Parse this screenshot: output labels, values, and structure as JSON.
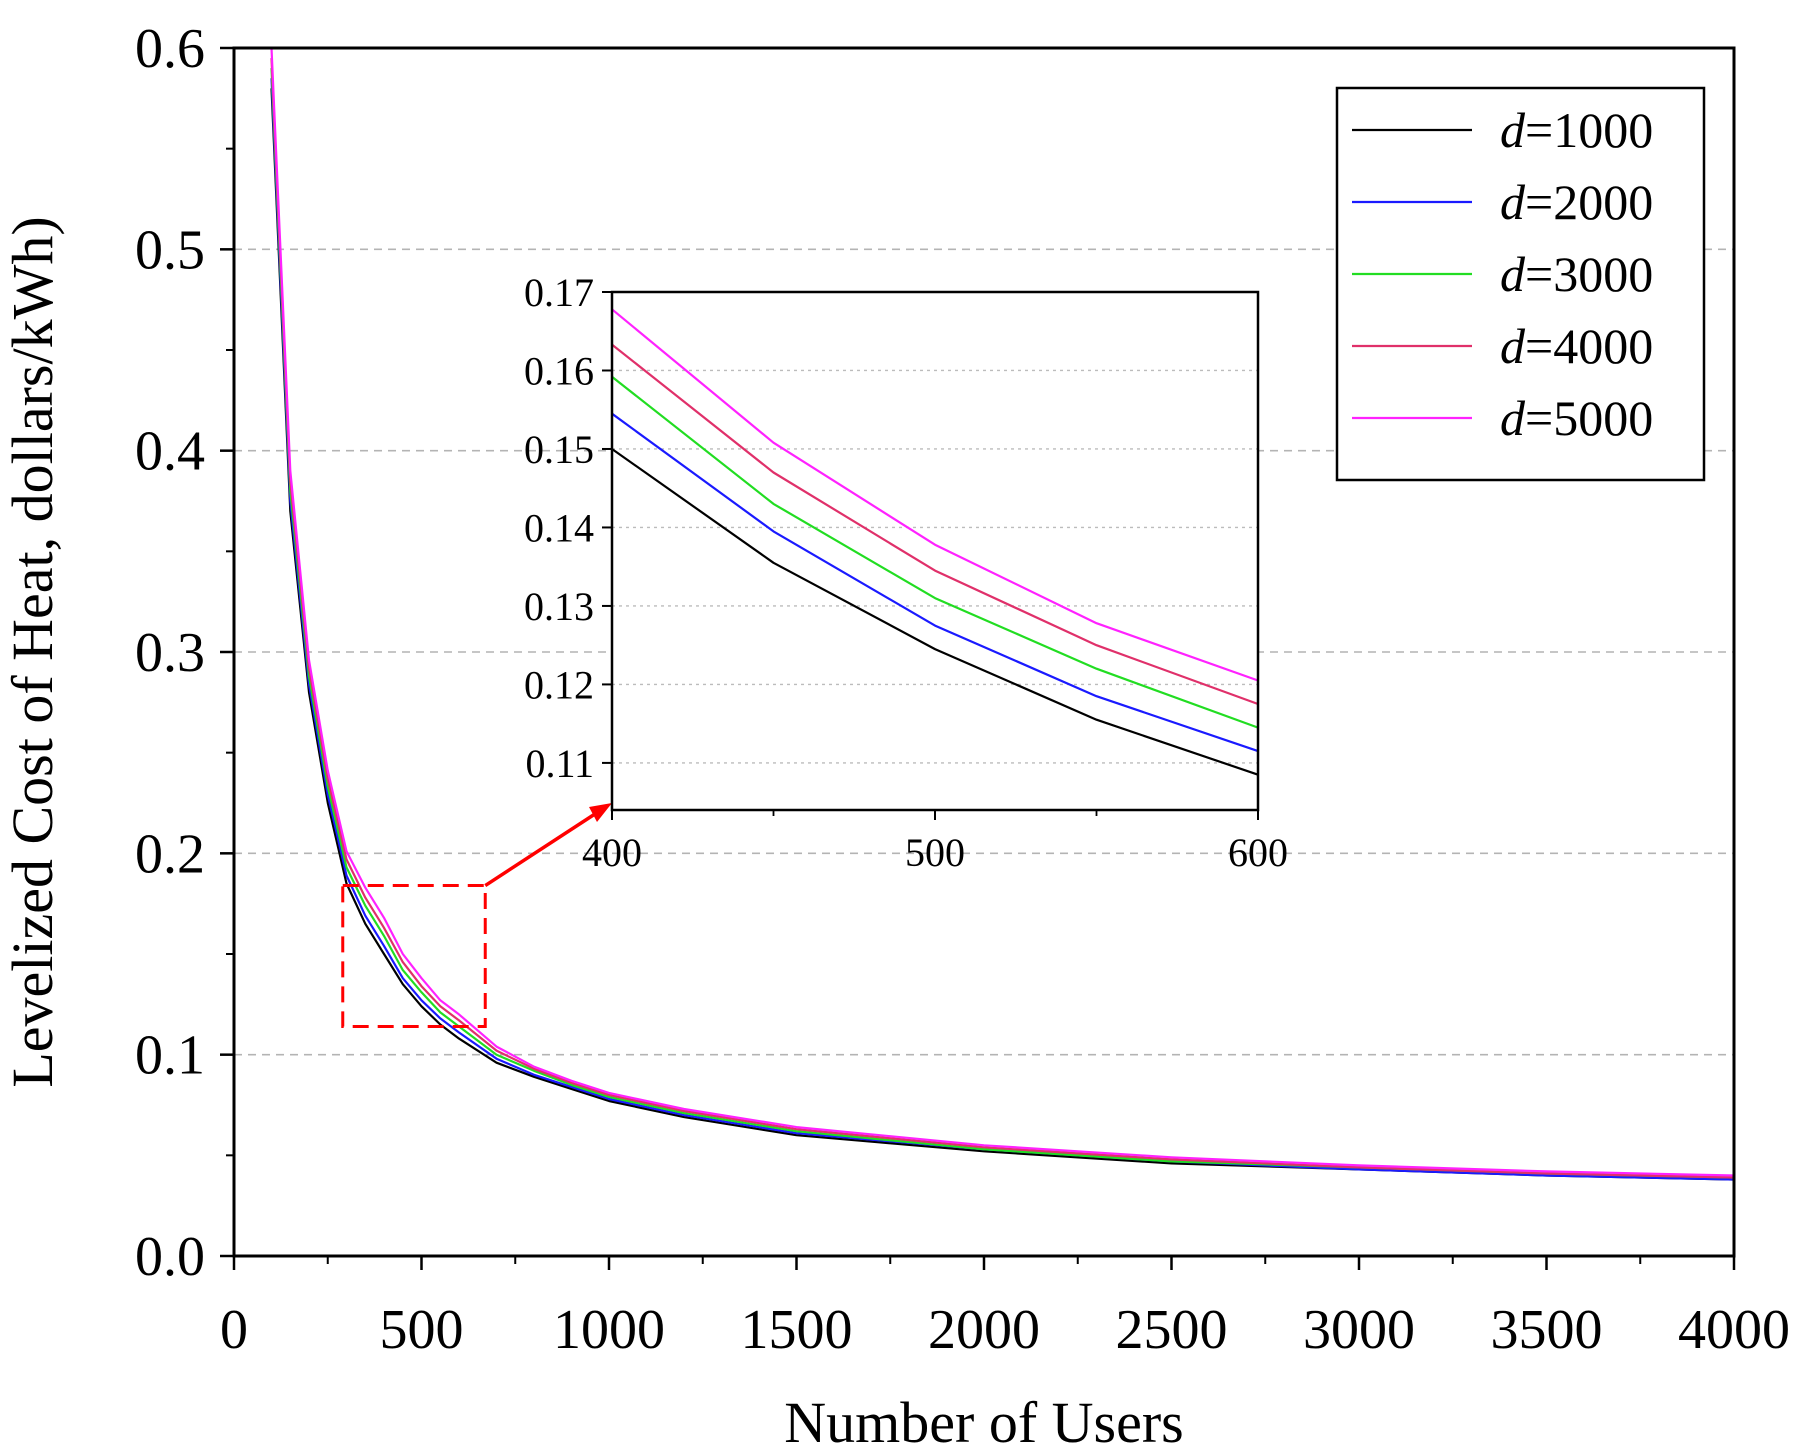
{
  "chart_data": [
    {
      "id": "main",
      "type": "line",
      "title": "",
      "xlabel": "Number of Users",
      "ylabel": "Levelized Cost of Heat, dollars/kWh)",
      "xlim": [
        0,
        4000
      ],
      "ylim": [
        0.0,
        0.6
      ],
      "xticks": [
        "0",
        "500",
        "1000",
        "1500",
        "2000",
        "2500",
        "3000",
        "3500",
        "4000"
      ],
      "xtick_values": [
        0,
        500,
        1000,
        1500,
        2000,
        2500,
        3000,
        3500,
        4000
      ],
      "yticks": [
        "0.0",
        "0.1",
        "0.2",
        "0.3",
        "0.4",
        "0.5",
        "0.6"
      ],
      "ytick_values": [
        0.0,
        0.1,
        0.2,
        0.3,
        0.4,
        0.5,
        0.6
      ],
      "grid": "horizontal dashed",
      "legend": {
        "placement": "top-right",
        "entries": [
          {
            "var": "d",
            "label": "=1000"
          },
          {
            "var": "d",
            "label": "=2000"
          },
          {
            "var": "d",
            "label": "=3000"
          },
          {
            "var": "d",
            "label": "=4000"
          },
          {
            "var": "d",
            "label": "=5000"
          }
        ]
      },
      "x": [
        100,
        150,
        200,
        250,
        300,
        350,
        400,
        450,
        500,
        550,
        600,
        700,
        800,
        900,
        1000,
        1200,
        1500,
        2000,
        2500,
        3000,
        3500,
        4000
      ],
      "series": [
        {
          "name": "d=1000",
          "color": "#000000",
          "values": [
            0.58,
            0.37,
            0.28,
            0.225,
            0.185,
            0.165,
            0.15,
            0.135,
            0.124,
            0.115,
            0.108,
            0.096,
            0.089,
            0.083,
            0.077,
            0.069,
            0.06,
            0.052,
            0.046,
            0.043,
            0.04,
            0.038
          ]
        },
        {
          "name": "d=2000",
          "color": "#1a1aff",
          "values": [
            0.585,
            0.375,
            0.284,
            0.229,
            0.189,
            0.169,
            0.154,
            0.138,
            0.127,
            0.118,
            0.111,
            0.098,
            0.09,
            0.084,
            0.078,
            0.07,
            0.061,
            0.053,
            0.047,
            0.043,
            0.04,
            0.038
          ]
        },
        {
          "name": "d=3000",
          "color": "#22dd22",
          "values": [
            0.59,
            0.38,
            0.288,
            0.233,
            0.193,
            0.174,
            0.159,
            0.142,
            0.131,
            0.121,
            0.114,
            0.1,
            0.092,
            0.085,
            0.079,
            0.071,
            0.062,
            0.053,
            0.047,
            0.044,
            0.041,
            0.039
          ]
        },
        {
          "name": "d=4000",
          "color": "#e0306a",
          "values": [
            0.595,
            0.385,
            0.292,
            0.237,
            0.197,
            0.178,
            0.163,
            0.146,
            0.134,
            0.124,
            0.117,
            0.102,
            0.093,
            0.086,
            0.08,
            0.072,
            0.063,
            0.054,
            0.048,
            0.044,
            0.041,
            0.039
          ]
        },
        {
          "name": "d=5000",
          "color": "#ff22ff",
          "values": [
            0.6,
            0.39,
            0.296,
            0.241,
            0.201,
            0.183,
            0.168,
            0.15,
            0.138,
            0.127,
            0.12,
            0.104,
            0.094,
            0.087,
            0.081,
            0.073,
            0.064,
            0.055,
            0.049,
            0.045,
            0.042,
            0.04
          ]
        }
      ],
      "annotation": {
        "type": "zoom-box",
        "x_range": [
          290,
          670
        ],
        "y_range": [
          0.114,
          0.184
        ]
      }
    },
    {
      "id": "inset",
      "type": "line",
      "title": "",
      "xlabel": "",
      "ylabel": "",
      "xlim": [
        400,
        600
      ],
      "ylim": [
        0.104,
        0.17
      ],
      "xticks": [
        "400",
        "500",
        "600"
      ],
      "xtick_values": [
        400,
        500,
        600
      ],
      "yticks": [
        "0.11",
        "0.12",
        "0.13",
        "0.14",
        "0.15",
        "0.16",
        "0.17"
      ],
      "ytick_values": [
        0.11,
        0.12,
        0.13,
        0.14,
        0.15,
        0.16,
        0.17
      ],
      "grid": "horizontal dotted",
      "x": [
        400,
        450,
        500,
        550,
        600
      ],
      "series": [
        {
          "name": "d=1000",
          "color": "#000000",
          "values": [
            0.15,
            0.1355,
            0.1245,
            0.1155,
            0.1085
          ]
        },
        {
          "name": "d=2000",
          "color": "#1a1aff",
          "values": [
            0.1545,
            0.1395,
            0.1275,
            0.1185,
            0.1115
          ]
        },
        {
          "name": "d=3000",
          "color": "#22dd22",
          "values": [
            0.1592,
            0.143,
            0.131,
            0.122,
            0.1145
          ]
        },
        {
          "name": "d=4000",
          "color": "#e0306a",
          "values": [
            0.1633,
            0.147,
            0.1345,
            0.125,
            0.1175
          ]
        },
        {
          "name": "d=5000",
          "color": "#ff22ff",
          "values": [
            0.1678,
            0.1508,
            0.1378,
            0.1278,
            0.1205
          ]
        }
      ]
    }
  ]
}
